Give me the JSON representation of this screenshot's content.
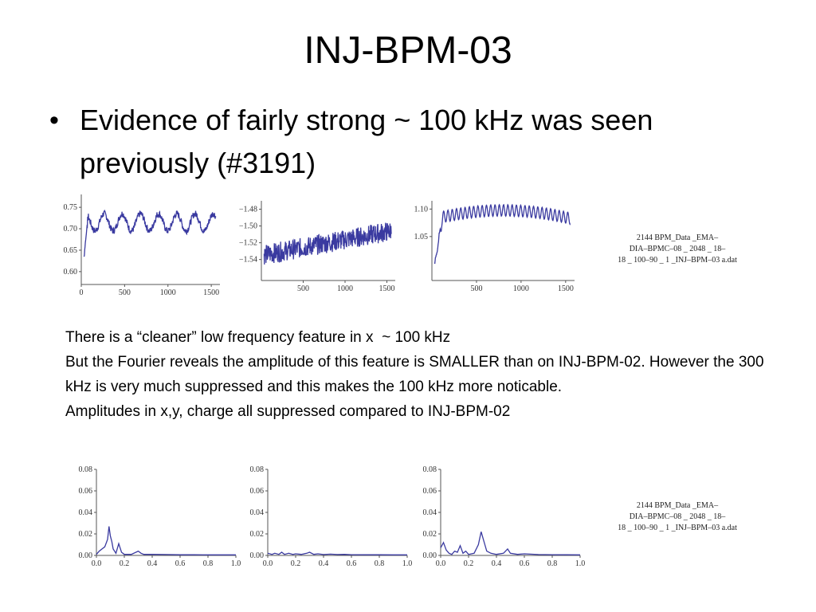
{
  "slide": {
    "title": "INJ-BPM-03",
    "bullet": "Evidence of fairly strong ~ 100 kHz was seen previously (#3191)",
    "paragraph": [
      "There is a “cleaner” low frequency feature in x  ~ 100 kHz",
      "But the Fourier reveals the amplitude of this feature is SMALLER than on INJ-BPM-02. However the 300 kHz is very much suppressed and this makes the 100 kHz more noticable.",
      "Amplitudes in x,y, charge all suppressed compared to INJ-BPM-02"
    ],
    "filename_top": [
      "2144 BPM_Data _EMA–",
      "DIA–BPMC–08 _ 2048 _ 18–",
      "18 _ 100–90 _ 1 _INJ–BPM–03 a.dat"
    ],
    "filename_bottom": [
      "2144 BPM_Data _EMA–",
      "DIA–BPMC–08 _ 2048 _ 18–",
      "18 _ 100–90 _ 1 _INJ–BPM–03 a.dat"
    ]
  },
  "colors": {
    "series": "#3a3aa0",
    "axis": "#555555"
  },
  "chart_data": [
    {
      "type": "line",
      "xlim": [
        0,
        1600
      ],
      "ylim": [
        0.57,
        0.78
      ],
      "xticks": [
        "0",
        "500",
        "1000",
        "1500"
      ],
      "xtick_values": [
        0,
        500,
        1000,
        1500
      ],
      "yticks": [
        "0.60",
        "0.65",
        "0.70",
        "0.75"
      ],
      "ytick_values": [
        0.6,
        0.65,
        0.7,
        0.75
      ],
      "model": {
        "kind": "oscillation",
        "base": 0.715,
        "amp": 0.02,
        "period": 210,
        "noise": 0.008,
        "dip": [
          0.57,
          80
        ]
      }
    },
    {
      "type": "line",
      "xlim": [
        0,
        1600
      ],
      "ylim": [
        -1.565,
        -1.47
      ],
      "xticks": [
        "500",
        "1000",
        "1500"
      ],
      "xtick_values": [
        500,
        1000,
        1500
      ],
      "yticks": [
        "−1.48",
        "−1.50",
        "−1.52",
        "−1.54"
      ],
      "ytick_values": [
        -1.48,
        -1.5,
        -1.52,
        -1.54
      ],
      "model": {
        "kind": "noisy_rise",
        "start": -1.535,
        "end": -1.505,
        "noise": 0.012,
        "dip": [
          -1.565,
          30
        ]
      }
    },
    {
      "type": "line",
      "xlim": [
        0,
        1600
      ],
      "ylim": [
        0.97,
        1.115
      ],
      "xticks": [
        "500",
        "1000",
        "1500"
      ],
      "xtick_values": [
        500,
        1000,
        1500
      ],
      "yticks": [
        "1.10",
        "1.05"
      ],
      "ytick_values": [
        1.1,
        1.05
      ],
      "model": {
        "kind": "arch_oscillation",
        "peak": 1.108,
        "amp": 0.035,
        "period": 48,
        "dip": [
          0.97,
          120
        ]
      }
    },
    {
      "type": "line",
      "xlim": [
        0,
        1.0
      ],
      "ylim": [
        0,
        0.08
      ],
      "xticks": [
        "0.0",
        "0.2",
        "0.4",
        "0.6",
        "0.8",
        "1.0"
      ],
      "xtick_values": [
        0,
        0.2,
        0.4,
        0.6,
        0.8,
        1.0
      ],
      "yticks": [
        "0.00",
        "0.02",
        "0.04",
        "0.06",
        "0.08"
      ],
      "ytick_values": [
        0,
        0.02,
        0.04,
        0.06,
        0.08
      ],
      "x": [
        0.0,
        0.02,
        0.04,
        0.06,
        0.08,
        0.09,
        0.1,
        0.11,
        0.12,
        0.14,
        0.16,
        0.18,
        0.2,
        0.25,
        0.3,
        0.32,
        0.34,
        0.4,
        0.5,
        0.6,
        0.7,
        0.8,
        0.9,
        1.0
      ],
      "y": [
        0.001,
        0.004,
        0.006,
        0.008,
        0.015,
        0.027,
        0.018,
        0.013,
        0.006,
        0.002,
        0.011,
        0.003,
        0.001,
        0.001,
        0.004,
        0.002,
        0.001,
        0.001,
        0.0008,
        0.0006,
        0.0006,
        0.0005,
        0.0005,
        0.0005
      ]
    },
    {
      "type": "line",
      "xlim": [
        0,
        1.0
      ],
      "ylim": [
        0,
        0.08
      ],
      "xticks": [
        "0.0",
        "0.2",
        "0.4",
        "0.6",
        "0.8",
        "1.0"
      ],
      "xtick_values": [
        0,
        0.2,
        0.4,
        0.6,
        0.8,
        1.0
      ],
      "yticks": [
        "0.00",
        "0.02",
        "0.04",
        "0.06",
        "0.08"
      ],
      "ytick_values": [
        0,
        0.02,
        0.04,
        0.06,
        0.08
      ],
      "x": [
        0.0,
        0.03,
        0.05,
        0.08,
        0.1,
        0.12,
        0.15,
        0.18,
        0.2,
        0.24,
        0.28,
        0.3,
        0.33,
        0.36,
        0.4,
        0.45,
        0.5,
        0.55,
        0.6,
        0.7,
        0.8,
        0.9,
        1.0
      ],
      "y": [
        0.002,
        0.001,
        0.002,
        0.001,
        0.003,
        0.001,
        0.002,
        0.001,
        0.0015,
        0.001,
        0.002,
        0.003,
        0.001,
        0.0015,
        0.0008,
        0.0012,
        0.0008,
        0.001,
        0.0007,
        0.0006,
        0.0006,
        0.0005,
        0.0005
      ]
    },
    {
      "type": "line",
      "xlim": [
        0,
        1.0
      ],
      "ylim": [
        0,
        0.08
      ],
      "xticks": [
        "0.0",
        "0.2",
        "0.4",
        "0.6",
        "0.8",
        "1.0"
      ],
      "xtick_values": [
        0,
        0.2,
        0.4,
        0.6,
        0.8,
        1.0
      ],
      "yticks": [
        "0.00",
        "0.02",
        "0.04",
        "0.06",
        "0.08"
      ],
      "ytick_values": [
        0,
        0.02,
        0.04,
        0.06,
        0.08
      ],
      "x": [
        0.0,
        0.02,
        0.04,
        0.06,
        0.08,
        0.1,
        0.12,
        0.14,
        0.16,
        0.18,
        0.2,
        0.24,
        0.27,
        0.29,
        0.31,
        0.33,
        0.36,
        0.4,
        0.45,
        0.48,
        0.5,
        0.55,
        0.6,
        0.7,
        0.8,
        0.9,
        1.0
      ],
      "y": [
        0.007,
        0.012,
        0.005,
        0.002,
        0.001,
        0.004,
        0.003,
        0.009,
        0.002,
        0.004,
        0.001,
        0.002,
        0.01,
        0.022,
        0.013,
        0.004,
        0.002,
        0.001,
        0.002,
        0.006,
        0.002,
        0.001,
        0.0015,
        0.0008,
        0.0007,
        0.0006,
        0.0005
      ]
    }
  ]
}
